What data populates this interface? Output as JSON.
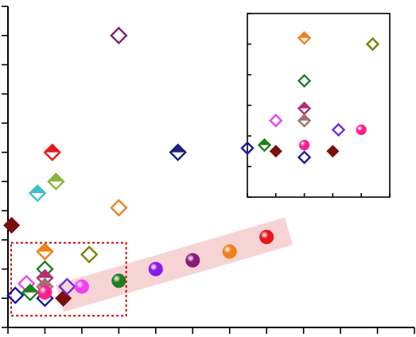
{
  "chart_data": {
    "type": "scatter",
    "title": "",
    "xlabel": "",
    "ylabel": "",
    "grid": false,
    "legend": "none",
    "xlim": [
      0,
      11
    ],
    "ylim": [
      0,
      11
    ],
    "x_ticks": [
      0,
      1,
      2,
      3,
      4,
      5,
      6,
      7,
      8,
      9,
      10,
      11
    ],
    "y_ticks": [
      0,
      1,
      2,
      3,
      4,
      5,
      6,
      7,
      8,
      9,
      10,
      11
    ],
    "series": [
      {
        "marker": "diamond-open",
        "color": "#7B1E7A",
        "points": [
          [
            3.0,
            10.0
          ]
        ]
      },
      {
        "marker": "diamond-half",
        "color": "#E41A1C",
        "points": [
          [
            1.2,
            6.0
          ]
        ]
      },
      {
        "marker": "diamond-half",
        "color": "#1F1F7A",
        "points": [
          [
            4.6,
            6.0
          ]
        ]
      },
      {
        "marker": "diamond-half",
        "color": "#8DB53A",
        "points": [
          [
            1.3,
            5.0
          ]
        ]
      },
      {
        "marker": "diamond-half",
        "color": "#39C0C8",
        "points": [
          [
            0.8,
            4.6
          ]
        ]
      },
      {
        "marker": "diamond-open",
        "color": "#F07F1A",
        "points": [
          [
            3.0,
            4.1
          ]
        ]
      },
      {
        "marker": "diamond-filled",
        "color": "#7A0F0F",
        "points": [
          [
            0.1,
            3.5
          ],
          [
            1.5,
            1.0
          ]
        ]
      },
      {
        "marker": "diamond-half",
        "color": "#F07F1A",
        "points": [
          [
            1.0,
            2.6
          ]
        ]
      },
      {
        "marker": "diamond-open",
        "color": "#808000",
        "points": [
          [
            2.2,
            2.5
          ]
        ]
      },
      {
        "marker": "diamond-open",
        "color": "#1E7F1E",
        "points": [
          [
            1.0,
            2.0
          ]
        ]
      },
      {
        "marker": "diamond-half",
        "color": "#B03070",
        "points": [
          [
            1.0,
            1.7
          ]
        ]
      },
      {
        "marker": "diamond-half",
        "color": "#A07070",
        "points": [
          [
            1.0,
            1.4
          ]
        ]
      },
      {
        "marker": "diamond-open",
        "color": "#E84BE8",
        "points": [
          [
            0.5,
            1.5
          ]
        ]
      },
      {
        "marker": "diamond-open",
        "color": "#6B2BE0",
        "points": [
          [
            1.6,
            1.4
          ]
        ]
      },
      {
        "marker": "diamond-open",
        "color": "#1A1AA0",
        "points": [
          [
            0.2,
            1.1
          ],
          [
            1.0,
            1.0
          ]
        ]
      },
      {
        "marker": "diamond-half",
        "color": "#1E7F1E",
        "points": [
          [
            0.6,
            1.2
          ]
        ]
      },
      {
        "marker": "circle",
        "color": "#FF2090",
        "points": [
          [
            1.0,
            1.2
          ]
        ]
      },
      {
        "marker": "circle",
        "color": "#F040F0",
        "points": [
          [
            2.0,
            1.4
          ]
        ]
      },
      {
        "marker": "circle",
        "color": "#1E7F1E",
        "points": [
          [
            3.0,
            1.6
          ]
        ]
      },
      {
        "marker": "circle",
        "color": "#8A1AE8",
        "points": [
          [
            4.0,
            2.0
          ]
        ]
      },
      {
        "marker": "circle",
        "color": "#8A1A7A",
        "points": [
          [
            5.0,
            2.3
          ]
        ]
      },
      {
        "marker": "circle",
        "color": "#F07F1A",
        "points": [
          [
            6.0,
            2.6
          ]
        ]
      },
      {
        "marker": "circle",
        "color": "#E8141C",
        "points": [
          [
            7.0,
            3.1
          ]
        ]
      }
    ],
    "inset": {
      "type": "scatter",
      "xlim": [
        0,
        5
      ],
      "ylim": [
        0,
        6
      ],
      "x_ticks": [
        0,
        1,
        2,
        3,
        4,
        5
      ],
      "y_ticks": [
        0,
        1,
        2,
        3,
        4,
        5,
        6
      ],
      "series": [
        {
          "marker": "diamond-half",
          "color": "#F07F1A",
          "points": [
            [
              2.0,
              5.2
            ]
          ]
        },
        {
          "marker": "diamond-open",
          "color": "#808000",
          "points": [
            [
              4.4,
              5.0
            ]
          ]
        },
        {
          "marker": "diamond-open",
          "color": "#1E7F1E",
          "points": [
            [
              2.0,
              3.8
            ]
          ]
        },
        {
          "marker": "diamond-half",
          "color": "#B03070",
          "points": [
            [
              2.0,
              2.9
            ]
          ]
        },
        {
          "marker": "diamond-half",
          "color": "#A07070",
          "points": [
            [
              2.0,
              2.5
            ]
          ]
        },
        {
          "marker": "diamond-open",
          "color": "#E84BE8",
          "points": [
            [
              1.0,
              2.5
            ]
          ]
        },
        {
          "marker": "diamond-open",
          "color": "#6B2BE0",
          "points": [
            [
              3.2,
              2.2
            ]
          ]
        },
        {
          "marker": "circle",
          "color": "#FF2090",
          "points": [
            [
              2.0,
              1.7
            ],
            [
              4.0,
              2.2
            ]
          ]
        },
        {
          "marker": "diamond-half",
          "color": "#1E7F1E",
          "points": [
            [
              0.6,
              1.7
            ]
          ]
        },
        {
          "marker": "diamond-open",
          "color": "#1A1AA0",
          "points": [
            [
              0.0,
              1.6
            ],
            [
              2.0,
              1.3
            ]
          ]
        },
        {
          "marker": "diamond-filled",
          "color": "#7A0F0F",
          "points": [
            [
              1.0,
              1.5
            ],
            [
              3.0,
              1.5
            ]
          ]
        }
      ]
    },
    "annotations": [
      {
        "kind": "dashed-box",
        "color": "#CC0000",
        "x_range": [
          0.0,
          3.2
        ],
        "y_range": [
          0.4,
          2.9
        ]
      },
      {
        "kind": "trend-band",
        "color": "#F4C6C6",
        "from": [
          1.4,
          1.0
        ],
        "to": [
          7.6,
          3.3
        ]
      }
    ]
  }
}
